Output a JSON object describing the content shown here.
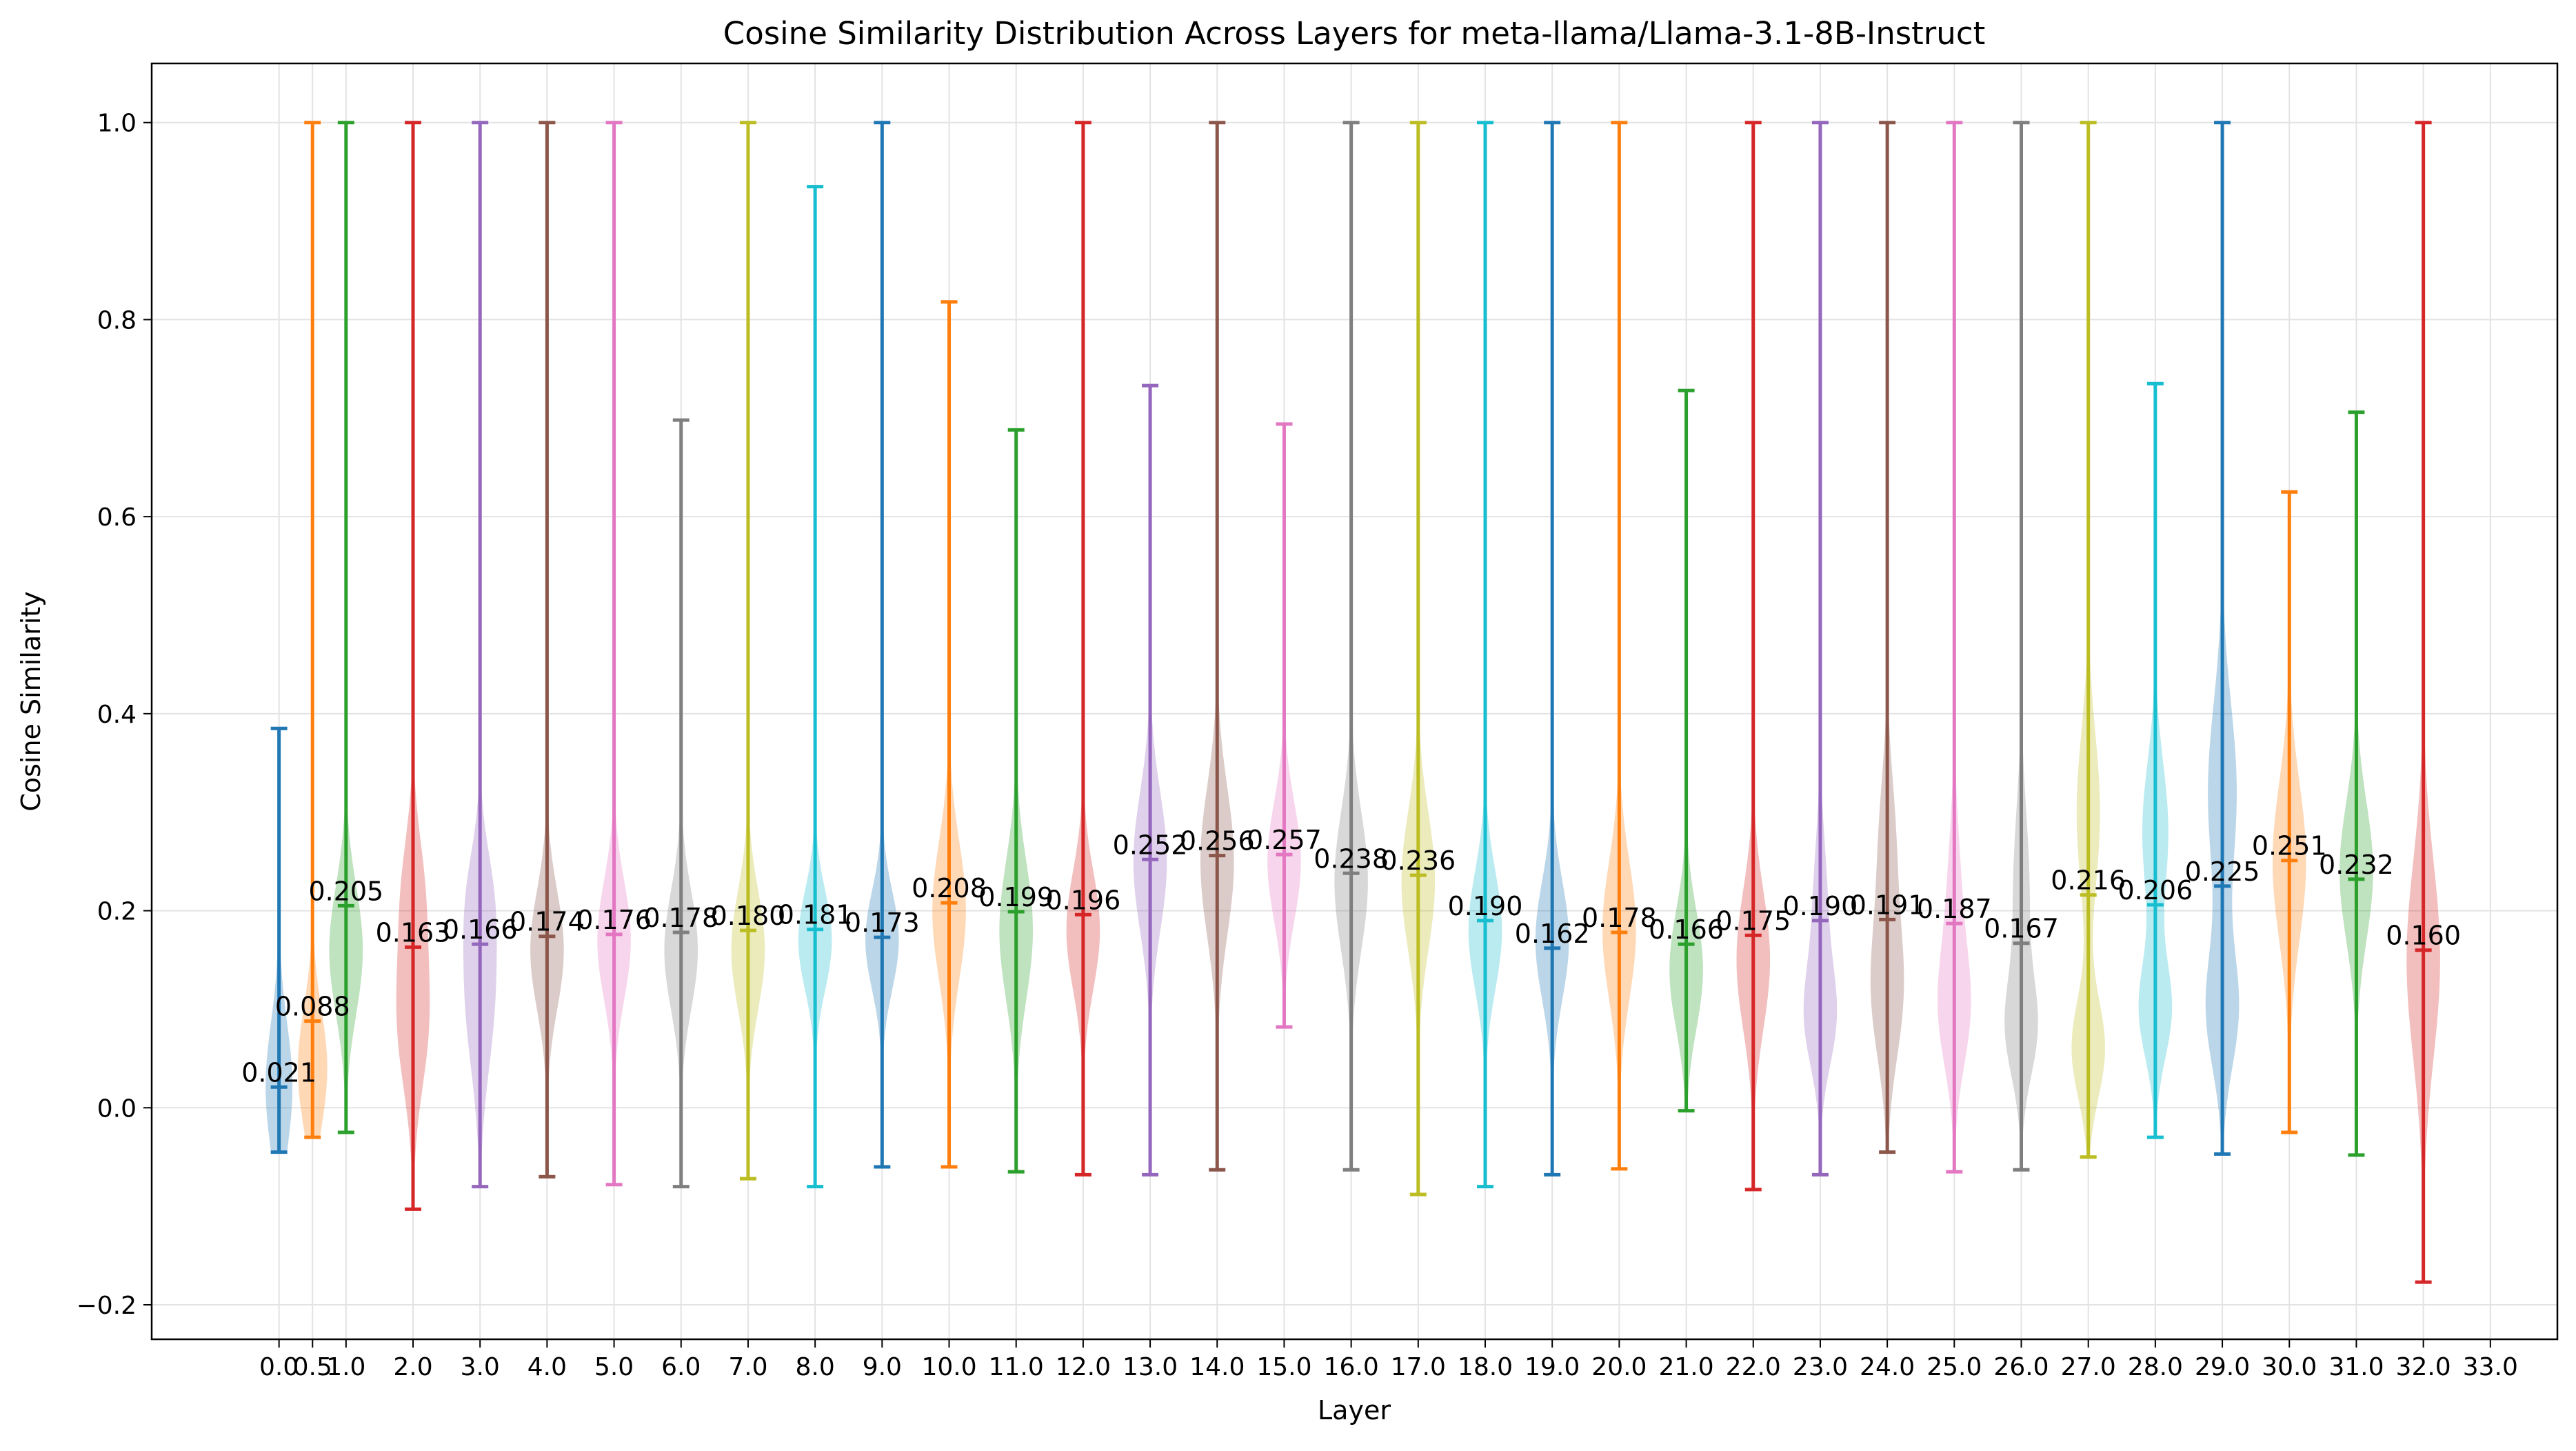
{
  "chart_data": {
    "type": "violin",
    "title": "Cosine Similarity Distribution Across Layers for meta-llama/Llama-3.1-8B-Instruct",
    "xlabel": "Layer",
    "ylabel": "Cosine Similarity",
    "xlim": [
      -1.9,
      34.0
    ],
    "ylim": [
      -0.235,
      1.06
    ],
    "grid": true,
    "xticks": [
      "0.0",
      "0.5",
      "1.0",
      "2.0",
      "3.0",
      "4.0",
      "5.0",
      "6.0",
      "7.0",
      "8.0",
      "9.0",
      "10.0",
      "11.0",
      "12.0",
      "13.0",
      "14.0",
      "15.0",
      "16.0",
      "17.0",
      "18.0",
      "19.0",
      "20.0",
      "21.0",
      "22.0",
      "23.0",
      "24.0",
      "25.0",
      "26.0",
      "27.0",
      "28.0",
      "29.0",
      "30.0",
      "31.0",
      "32.0",
      "33.0"
    ],
    "xtick_values": [
      0.0,
      0.5,
      1.0,
      2.0,
      3.0,
      4.0,
      5.0,
      6.0,
      7.0,
      8.0,
      9.0,
      10.0,
      11.0,
      12.0,
      13.0,
      14.0,
      15.0,
      16.0,
      17.0,
      18.0,
      19.0,
      20.0,
      21.0,
      22.0,
      23.0,
      24.0,
      25.0,
      26.0,
      27.0,
      28.0,
      29.0,
      30.0,
      31.0,
      32.0,
      33.0
    ],
    "yticks": [
      -0.2,
      0.0,
      0.2,
      0.4,
      0.6,
      0.8,
      1.0
    ],
    "ytick_labels": [
      "−0.2",
      "0.0",
      "0.2",
      "0.4",
      "0.6",
      "0.8",
      "1.0"
    ],
    "palette": [
      "#1f77b4",
      "#ff7f0e",
      "#2ca02c",
      "#d62728",
      "#9467bd",
      "#8c564b",
      "#e377c2",
      "#7f7f7f",
      "#bcbd22",
      "#17becf"
    ],
    "violins": [
      {
        "layer": 0.0,
        "min": -0.045,
        "max": 0.385,
        "mean": 0.021,
        "label": "0.021",
        "width": 0.2,
        "modes": [
          [
            0.021,
            0.065,
            1.0
          ]
        ]
      },
      {
        "layer": 0.5,
        "min": -0.03,
        "max": 1.0,
        "mean": 0.088,
        "label": "0.088",
        "width": 0.22,
        "modes": [
          [
            0.04,
            0.06,
            1.0
          ]
        ]
      },
      {
        "layer": 1.0,
        "min": -0.025,
        "max": 1.0,
        "mean": 0.205,
        "label": "0.205",
        "width": 0.25,
        "modes": [
          [
            0.16,
            0.065,
            1.0
          ]
        ]
      },
      {
        "layer": 2.0,
        "min": -0.103,
        "max": 1.0,
        "mean": 0.163,
        "label": "0.163",
        "width": 0.25,
        "modes": [
          [
            0.09,
            0.07,
            1.0
          ],
          [
            0.22,
            0.06,
            0.65
          ]
        ]
      },
      {
        "layer": 3.0,
        "min": -0.08,
        "max": 1.0,
        "mean": 0.166,
        "label": "0.166",
        "width": 0.25,
        "modes": [
          [
            0.12,
            0.08,
            1.0
          ],
          [
            0.22,
            0.05,
            0.5
          ]
        ]
      },
      {
        "layer": 4.0,
        "min": -0.07,
        "max": 1.0,
        "mean": 0.174,
        "label": "0.174",
        "width": 0.25,
        "modes": [
          [
            0.16,
            0.06,
            1.0
          ]
        ]
      },
      {
        "layer": 5.0,
        "min": -0.078,
        "max": 1.0,
        "mean": 0.176,
        "label": "0.176",
        "width": 0.25,
        "modes": [
          [
            0.17,
            0.06,
            1.0
          ]
        ]
      },
      {
        "layer": 6.0,
        "min": -0.08,
        "max": 0.698,
        "mean": 0.178,
        "label": "0.178",
        "width": 0.25,
        "modes": [
          [
            0.16,
            0.06,
            1.0
          ]
        ]
      },
      {
        "layer": 7.0,
        "min": -0.072,
        "max": 1.0,
        "mean": 0.18,
        "label": "0.180",
        "width": 0.25,
        "modes": [
          [
            0.16,
            0.06,
            1.0
          ]
        ]
      },
      {
        "layer": 8.0,
        "min": -0.08,
        "max": 0.935,
        "mean": 0.181,
        "label": "0.181",
        "width": 0.25,
        "modes": [
          [
            0.17,
            0.05,
            1.0
          ]
        ]
      },
      {
        "layer": 9.0,
        "min": -0.06,
        "max": 1.0,
        "mean": 0.173,
        "label": "0.173",
        "width": 0.25,
        "modes": [
          [
            0.17,
            0.05,
            1.0
          ]
        ]
      },
      {
        "layer": 10.0,
        "min": -0.06,
        "max": 0.818,
        "mean": 0.208,
        "label": "0.208",
        "width": 0.25,
        "modes": [
          [
            0.2,
            0.07,
            1.0
          ]
        ]
      },
      {
        "layer": 11.0,
        "min": -0.065,
        "max": 0.688,
        "mean": 0.199,
        "label": "0.199",
        "width": 0.25,
        "modes": [
          [
            0.18,
            0.07,
            1.0
          ]
        ]
      },
      {
        "layer": 12.0,
        "min": -0.068,
        "max": 1.0,
        "mean": 0.196,
        "label": "0.196",
        "width": 0.25,
        "modes": [
          [
            0.18,
            0.06,
            1.0
          ]
        ]
      },
      {
        "layer": 13.0,
        "min": -0.068,
        "max": 0.733,
        "mean": 0.252,
        "label": "0.252",
        "width": 0.25,
        "modes": [
          [
            0.25,
            0.07,
            1.0
          ]
        ]
      },
      {
        "layer": 14.0,
        "min": -0.063,
        "max": 1.0,
        "mean": 0.256,
        "label": "0.256",
        "width": 0.25,
        "modes": [
          [
            0.25,
            0.075,
            1.0
          ]
        ]
      },
      {
        "layer": 15.0,
        "min": 0.082,
        "max": 0.694,
        "mean": 0.257,
        "label": "0.257",
        "width": 0.25,
        "modes": [
          [
            0.25,
            0.06,
            1.0
          ]
        ]
      },
      {
        "layer": 16.0,
        "min": -0.063,
        "max": 1.0,
        "mean": 0.238,
        "label": "0.238",
        "width": 0.25,
        "modes": [
          [
            0.23,
            0.07,
            1.0
          ]
        ]
      },
      {
        "layer": 17.0,
        "min": -0.088,
        "max": 1.0,
        "mean": 0.236,
        "label": "0.236",
        "width": 0.25,
        "modes": [
          [
            0.23,
            0.07,
            1.0
          ]
        ]
      },
      {
        "layer": 18.0,
        "min": -0.08,
        "max": 1.0,
        "mean": 0.19,
        "label": "0.190",
        "width": 0.25,
        "modes": [
          [
            0.18,
            0.06,
            1.0
          ]
        ]
      },
      {
        "layer": 19.0,
        "min": -0.068,
        "max": 1.0,
        "mean": 0.162,
        "label": "0.162",
        "width": 0.25,
        "modes": [
          [
            0.17,
            0.06,
            1.0
          ]
        ]
      },
      {
        "layer": 20.0,
        "min": -0.062,
        "max": 1.0,
        "mean": 0.178,
        "label": "0.178",
        "width": 0.25,
        "modes": [
          [
            0.18,
            0.07,
            1.0
          ]
        ]
      },
      {
        "layer": 21.0,
        "min": -0.003,
        "max": 0.728,
        "mean": 0.166,
        "label": "0.166",
        "width": 0.25,
        "modes": [
          [
            0.14,
            0.06,
            1.0
          ]
        ]
      },
      {
        "layer": 22.0,
        "min": -0.083,
        "max": 1.0,
        "mean": 0.175,
        "label": "0.175",
        "width": 0.25,
        "modes": [
          [
            0.15,
            0.07,
            1.0
          ]
        ]
      },
      {
        "layer": 23.0,
        "min": -0.068,
        "max": 1.0,
        "mean": 0.19,
        "label": "0.190",
        "width": 0.25,
        "modes": [
          [
            0.09,
            0.05,
            1.0
          ],
          [
            0.2,
            0.07,
            0.5
          ]
        ]
      },
      {
        "layer": 24.0,
        "min": -0.045,
        "max": 1.0,
        "mean": 0.191,
        "label": "0.191",
        "width": 0.25,
        "modes": [
          [
            0.12,
            0.07,
            1.0
          ],
          [
            0.27,
            0.07,
            0.5
          ]
        ]
      },
      {
        "layer": 25.0,
        "min": -0.065,
        "max": 1.0,
        "mean": 0.187,
        "label": "0.187",
        "width": 0.25,
        "modes": [
          [
            0.1,
            0.06,
            1.0
          ],
          [
            0.22,
            0.07,
            0.4
          ]
        ]
      },
      {
        "layer": 26.0,
        "min": -0.063,
        "max": 1.0,
        "mean": 0.167,
        "label": "0.167",
        "width": 0.25,
        "modes": [
          [
            0.08,
            0.05,
            1.0
          ],
          [
            0.22,
            0.08,
            0.55
          ]
        ]
      },
      {
        "layer": 27.0,
        "min": -0.05,
        "max": 1.0,
        "mean": 0.216,
        "label": "0.216",
        "width": 0.25,
        "modes": [
          [
            0.06,
            0.05,
            1.0
          ],
          [
            0.3,
            0.08,
            0.7
          ]
        ]
      },
      {
        "layer": 28.0,
        "min": -0.03,
        "max": 0.735,
        "mean": 0.206,
        "label": "0.206",
        "width": 0.25,
        "modes": [
          [
            0.1,
            0.05,
            1.0
          ],
          [
            0.28,
            0.07,
            0.8
          ]
        ]
      },
      {
        "layer": 29.0,
        "min": -0.047,
        "max": 1.0,
        "mean": 0.225,
        "label": "0.225",
        "width": 0.25,
        "modes": [
          [
            0.1,
            0.06,
            1.0
          ],
          [
            0.32,
            0.09,
            0.9
          ]
        ]
      },
      {
        "layer": 30.0,
        "min": -0.025,
        "max": 0.625,
        "mean": 0.251,
        "label": "0.251",
        "width": 0.25,
        "modes": [
          [
            0.25,
            0.08,
            1.0
          ]
        ]
      },
      {
        "layer": 31.0,
        "min": -0.048,
        "max": 0.706,
        "mean": 0.232,
        "label": "0.232",
        "width": 0.25,
        "modes": [
          [
            0.24,
            0.07,
            1.0
          ]
        ]
      },
      {
        "layer": 32.0,
        "min": -0.177,
        "max": 1.0,
        "mean": 0.16,
        "label": "0.160",
        "width": 0.25,
        "modes": [
          [
            0.15,
            0.1,
            1.0
          ]
        ]
      }
    ]
  }
}
